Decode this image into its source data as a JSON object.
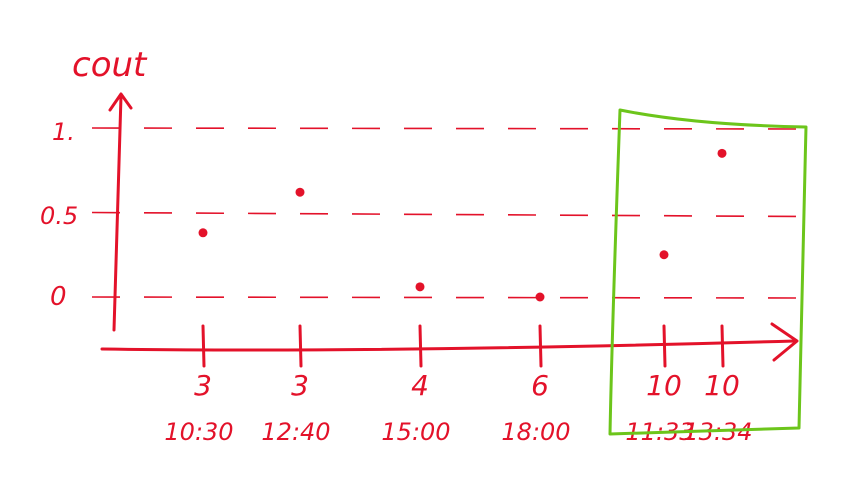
{
  "colors": {
    "ink": "#e3122a",
    "highlight": "#6cc51b",
    "background": "#ffffff"
  },
  "chart_data": {
    "type": "scatter",
    "ylabel": "cout",
    "xlabel": "",
    "y_ticks": [
      "1.",
      "0.5",
      "0"
    ],
    "ylim": [
      0,
      1
    ],
    "grid": "dashed horizontal lines at 0, 0.5, 1",
    "x_ticks": [
      {
        "day": "3",
        "time": "10:30"
      },
      {
        "day": "3",
        "time": "12:40"
      },
      {
        "day": "4",
        "time": "15:00"
      },
      {
        "day": "6",
        "time": "18:00"
      },
      {
        "day": "10",
        "time": "11:33"
      },
      {
        "day": "10",
        "time": "13:34"
      }
    ],
    "points": [
      {
        "tick": 0,
        "y": 0.38
      },
      {
        "tick": 1,
        "y": 0.62
      },
      {
        "tick": 2,
        "y": 0.06
      },
      {
        "tick": 3,
        "y": 0.0
      },
      {
        "tick": 4,
        "y": 0.25
      },
      {
        "tick": 5,
        "y": 0.85
      }
    ],
    "highlight": {
      "from_tick": 4,
      "to_tick": 5,
      "label": ""
    }
  }
}
